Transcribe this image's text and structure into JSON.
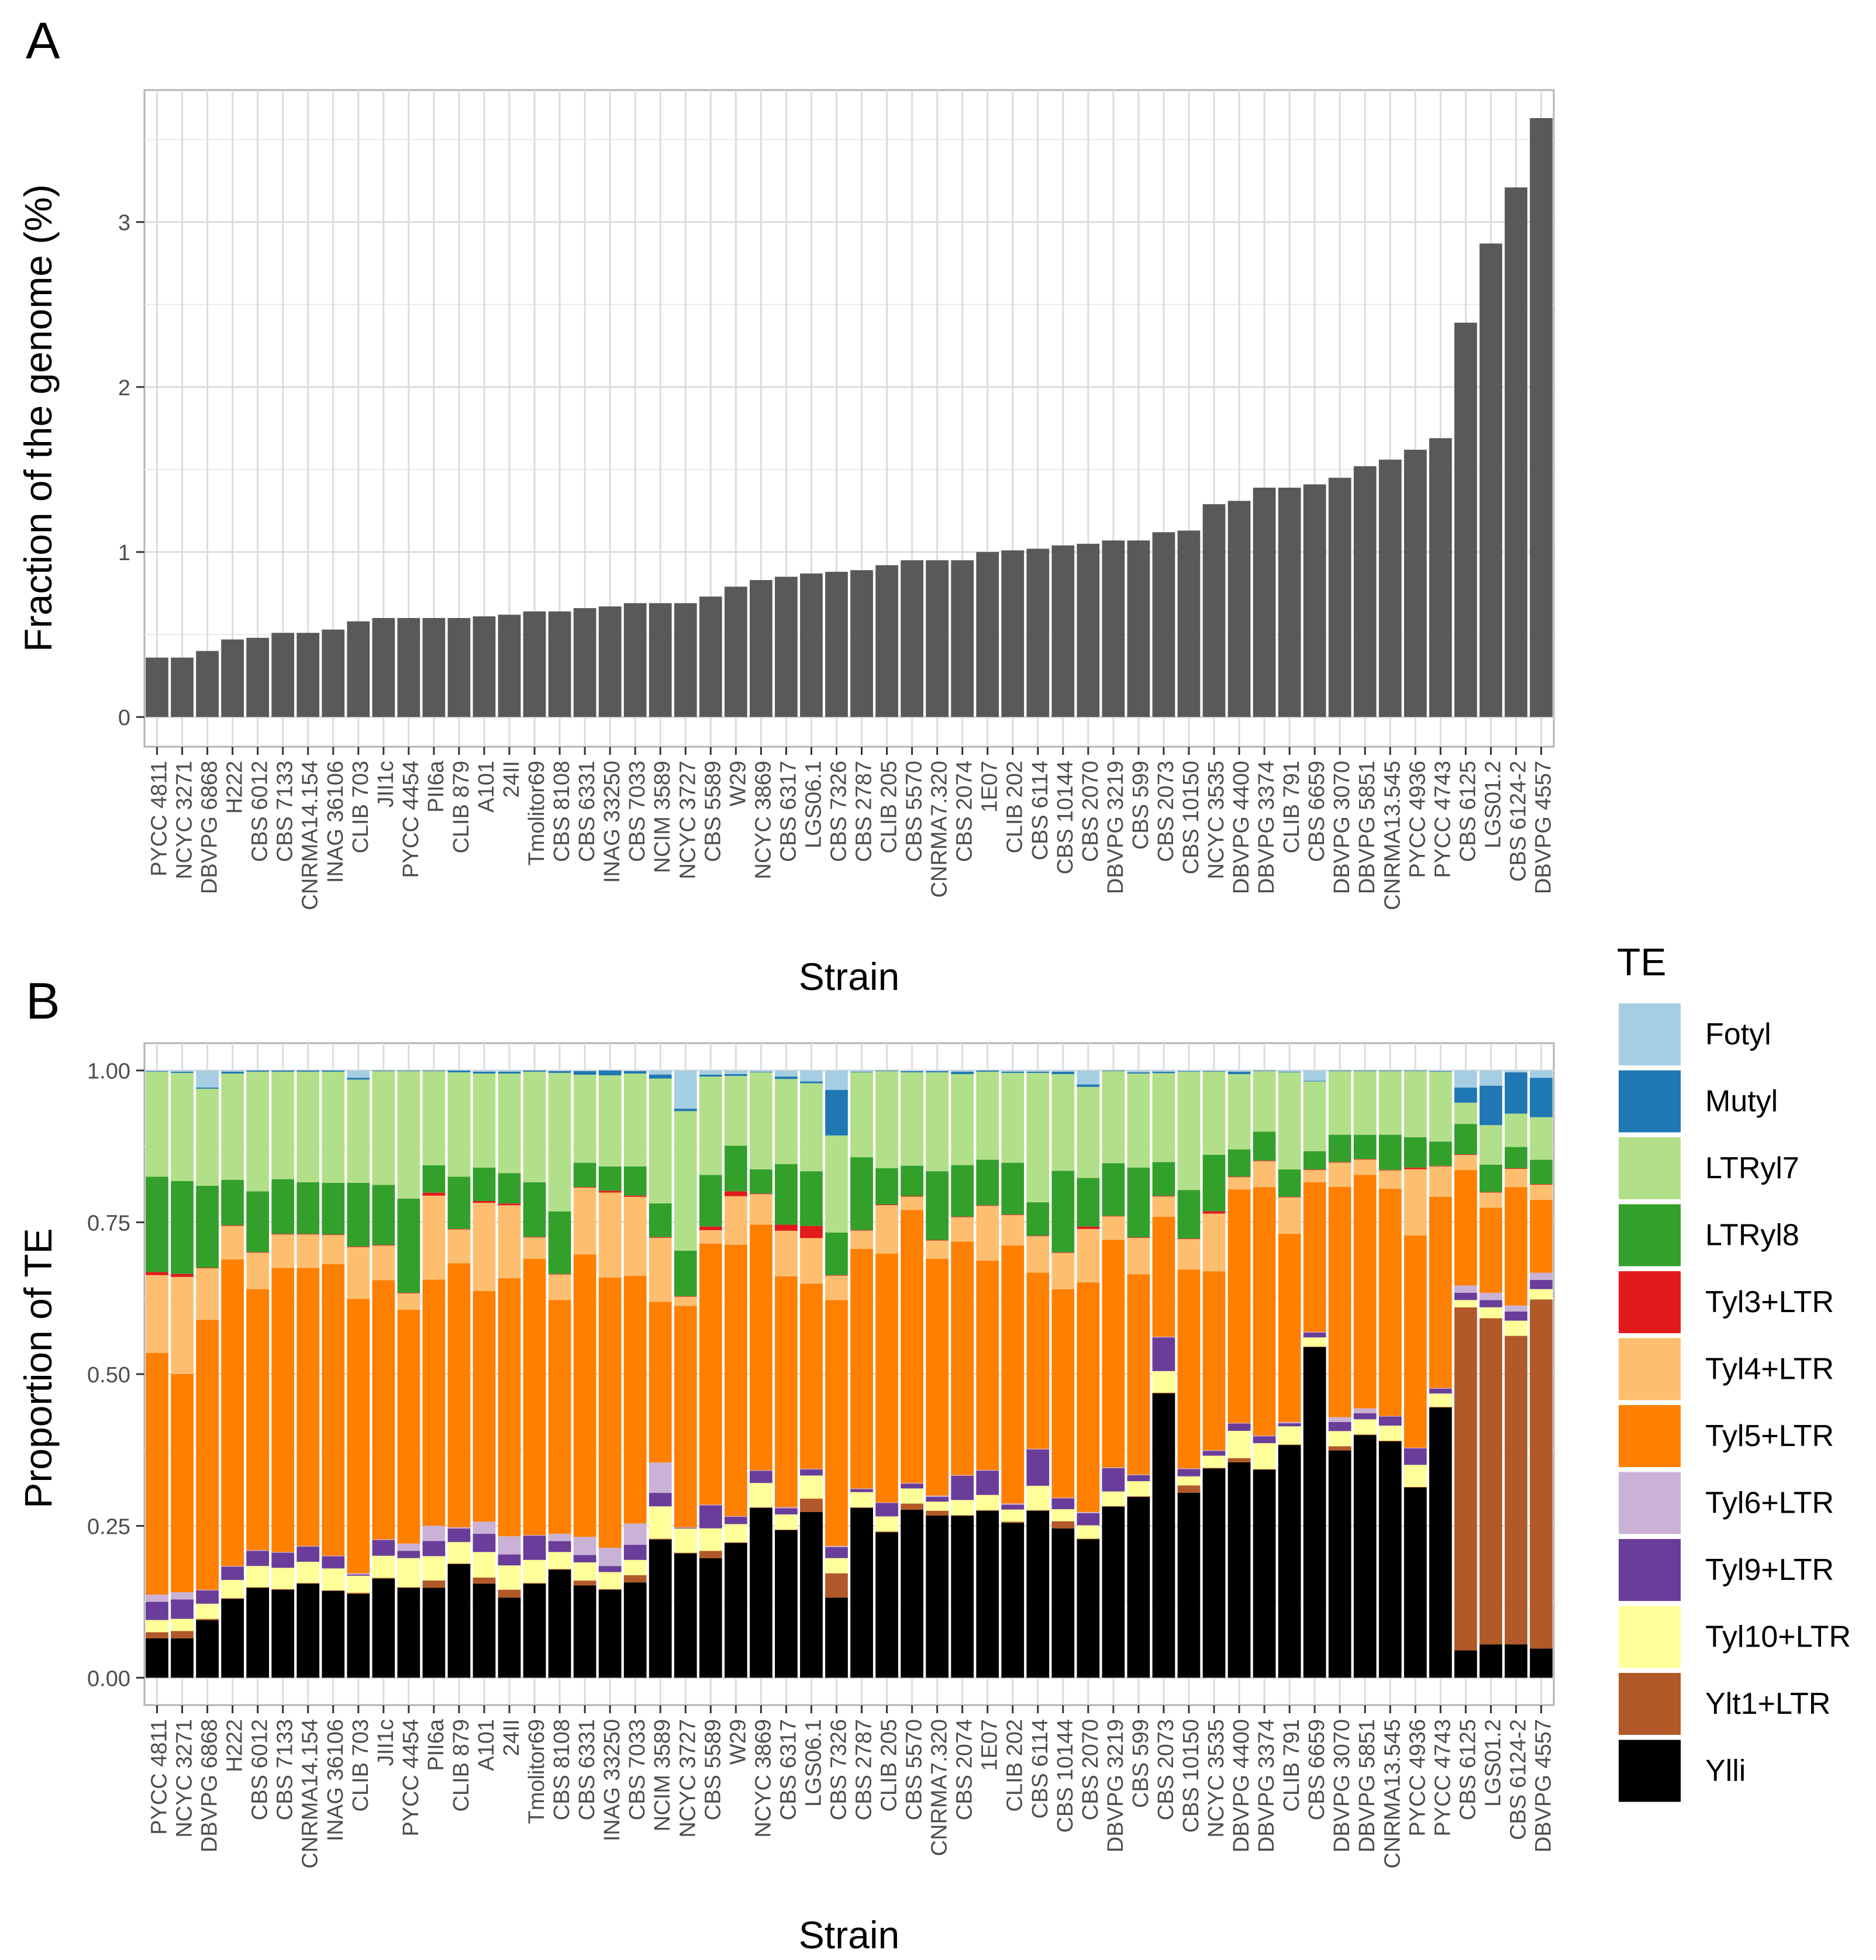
{
  "strains": [
    "PYCC 4811",
    "NCYC 3271",
    "DBVPG 6868",
    "H222",
    "CBS 6012",
    "CBS 7133",
    "CNRMA14.154",
    "INAG 36106",
    "CLIB 703",
    "JII1c",
    "PYCC 4454",
    "PII6a",
    "CLIB 879",
    "A101",
    "24II",
    "Tmolitor69",
    "CBS 8108",
    "CBS 6331",
    "INAG 33250",
    "CBS 7033",
    "NCIM 3589",
    "NCYC 3727",
    "CBS 5589",
    "W29",
    "NCYC 3869",
    "CBS 6317",
    "LGS06.1",
    "CBS 7326",
    "CBS 2787",
    "CLIB 205",
    "CBS 5570",
    "CNRMA7.320",
    "CBS 2074",
    "1E07",
    "CLIB 202",
    "CBS 6114",
    "CBS 10144",
    "CBS 2070",
    "DBVPG 3219",
    "CBS 599",
    "CBS 2073",
    "CBS 10150",
    "NCYC 3535",
    "DBVPG 4400",
    "DBVPG 3374",
    "CLIB 791",
    "CBS 6659",
    "DBVPG 3070",
    "DBVPG 5851",
    "CNRMA13.545",
    "PYCC 4936",
    "PYCC 4743",
    "CBS 6125",
    "LGS01.2",
    "CBS 6124-2",
    "DBVPG 4557"
  ],
  "chart_data": [
    {
      "panel": "A",
      "type": "bar",
      "title": "",
      "xlabel": "Strain",
      "ylabel": "Fraction of the genome (%)",
      "ylim": [
        -0.18,
        3.8
      ],
      "yticks": [
        0,
        1,
        2,
        3
      ],
      "grid": true,
      "values": [
        0.36,
        0.36,
        0.4,
        0.47,
        0.48,
        0.51,
        0.51,
        0.53,
        0.58,
        0.6,
        0.6,
        0.6,
        0.6,
        0.61,
        0.62,
        0.64,
        0.64,
        0.66,
        0.67,
        0.69,
        0.69,
        0.69,
        0.73,
        0.79,
        0.83,
        0.85,
        0.87,
        0.88,
        0.89,
        0.92,
        0.95,
        0.95,
        0.95,
        1.0,
        1.01,
        1.02,
        1.04,
        1.05,
        1.07,
        1.07,
        1.12,
        1.13,
        1.29,
        1.31,
        1.39,
        1.39,
        1.41,
        1.45,
        1.52,
        1.56,
        1.62,
        1.69,
        2.39,
        2.87,
        3.21,
        3.63
      ]
    },
    {
      "panel": "B",
      "type": "bar",
      "stacked": true,
      "title": "",
      "xlabel": "Strain",
      "ylabel": "Proportion of TE",
      "ylim": [
        -0.045,
        1.045
      ],
      "yticks": [
        "0.00",
        "0.25",
        "0.50",
        "0.75",
        "1.00"
      ],
      "grid": true,
      "legend_title": "TE",
      "legend_position": "right",
      "series": [
        {
          "name": "Ylli",
          "color": "#000000",
          "values": [
            0.065,
            0.065,
            0.095,
            0.13,
            0.148,
            0.145,
            0.155,
            0.143,
            0.138,
            0.157,
            0.148,
            0.148,
            0.185,
            0.155,
            0.132,
            0.155,
            0.178,
            0.152,
            0.145,
            0.157,
            0.205,
            0.205,
            0.197,
            0.222,
            0.28,
            0.243,
            0.273,
            0.132,
            0.28,
            0.24,
            0.277,
            0.267,
            0.267,
            0.275,
            0.255,
            0.275,
            0.247,
            0.228,
            0.293,
            0.298,
            0.422,
            0.305,
            0.345,
            0.355,
            0.36,
            0.383,
            0.545,
            0.375,
            0.4,
            0.39,
            0.345,
            0.445,
            0.045,
            0.055,
            0.055,
            0.048
          ]
        },
        {
          "name": "Ylt1+LTR",
          "color": "#b15928",
          "values": [
            0.01,
            0.012,
            0.002,
            0.001,
            0.001,
            0.001,
            0.001,
            0.001,
            0.002,
            0.001,
            0.001,
            0.012,
            0.001,
            0.01,
            0.013,
            0.001,
            0.001,
            0.008,
            0.001,
            0.012,
            0.001,
            0.001,
            0.012,
            0.001,
            0.001,
            0.001,
            0.022,
            0.04,
            0.001,
            0.001,
            0.01,
            0.008,
            0.001,
            0.001,
            0.002,
            0.001,
            0.012,
            0.001,
            0.001,
            0.001,
            0.001,
            0.012,
            0.001,
            0.007,
            0.001,
            0.001,
            0.001,
            0.007,
            0.001,
            0.001,
            0.001,
            0.001,
            0.565,
            0.537,
            0.508,
            0.575
          ]
        },
        {
          "name": "Tyl10+LTR",
          "color": "#ffff99",
          "values": [
            0.02,
            0.02,
            0.025,
            0.03,
            0.035,
            0.035,
            0.035,
            0.036,
            0.028,
            0.035,
            0.048,
            0.04,
            0.035,
            0.042,
            0.04,
            0.038,
            0.028,
            0.03,
            0.028,
            0.025,
            0.048,
            0.04,
            0.037,
            0.03,
            0.04,
            0.025,
            0.038,
            0.025,
            0.025,
            0.025,
            0.025,
            0.015,
            0.025,
            0.025,
            0.02,
            0.04,
            0.02,
            0.022,
            0.025,
            0.025,
            0.032,
            0.015,
            0.02,
            0.045,
            0.045,
            0.03,
            0.015,
            0.025,
            0.025,
            0.025,
            0.04,
            0.022,
            0.012,
            0.018,
            0.025,
            0.017
          ]
        },
        {
          "name": "Tyl9+LTR",
          "color": "#6a3d9a",
          "values": [
            0.03,
            0.032,
            0.022,
            0.022,
            0.025,
            0.025,
            0.025,
            0.02,
            0.002,
            0.025,
            0.012,
            0.025,
            0.022,
            0.03,
            0.018,
            0.04,
            0.018,
            0.012,
            0.01,
            0.025,
            0.02,
            0.001,
            0.038,
            0.012,
            0.02,
            0.01,
            0.01,
            0.018,
            0.005,
            0.022,
            0.008,
            0.008,
            0.04,
            0.04,
            0.008,
            0.06,
            0.018,
            0.02,
            0.04,
            0.01,
            0.05,
            0.012,
            0.008,
            0.012,
            0.012,
            0.005,
            0.008,
            0.015,
            0.01,
            0.015,
            0.03,
            0.008,
            0.012,
            0.012,
            0.015,
            0.015
          ]
        },
        {
          "name": "Tyl6+LTR",
          "color": "#cab2d6",
          "values": [
            0.012,
            0.012,
            0.001,
            0.001,
            0.001,
            0.001,
            0.001,
            0.001,
            0.002,
            0.001,
            0.012,
            0.025,
            0.002,
            0.02,
            0.03,
            0.001,
            0.012,
            0.03,
            0.03,
            0.035,
            0.045,
            0.001,
            0.001,
            0.001,
            0.001,
            0.002,
            0.001,
            0.002,
            0.001,
            0.001,
            0.001,
            0.002,
            0.001,
            0.001,
            0.002,
            0.001,
            0.001,
            0.002,
            0.001,
            0.001,
            0.001,
            0.001,
            0.001,
            0.001,
            0.001,
            0.002,
            0.001,
            0.008,
            0.008,
            0.001,
            0.001,
            0.001,
            0.012,
            0.012,
            0.01,
            0.012
          ]
        },
        {
          "name": "Tyl5+LTR",
          "color": "#ff7f00",
          "values": [
            0.398,
            0.359,
            0.445,
            0.505,
            0.43,
            0.468,
            0.458,
            0.48,
            0.452,
            0.41,
            0.385,
            0.405,
            0.43,
            0.38,
            0.425,
            0.455,
            0.385,
            0.465,
            0.445,
            0.408,
            0.238,
            0.365,
            0.43,
            0.447,
            0.405,
            0.38,
            0.305,
            0.405,
            0.395,
            0.41,
            0.45,
            0.39,
            0.385,
            0.345,
            0.425,
            0.29,
            0.345,
            0.378,
            0.39,
            0.33,
            0.178,
            0.328,
            0.295,
            0.385,
            0.43,
            0.31,
            0.247,
            0.38,
            0.385,
            0.375,
            0.385,
            0.315,
            0.19,
            0.14,
            0.195,
            0.12
          ]
        },
        {
          "name": "Tyl4+LTR",
          "color": "#fdbf6f",
          "values": [
            0.128,
            0.16,
            0.085,
            0.055,
            0.06,
            0.055,
            0.055,
            0.048,
            0.085,
            0.055,
            0.027,
            0.138,
            0.055,
            0.145,
            0.12,
            0.035,
            0.042,
            0.11,
            0.14,
            0.13,
            0.095,
            0.015,
            0.022,
            0.08,
            0.05,
            0.075,
            0.075,
            0.04,
            0.03,
            0.08,
            0.022,
            0.03,
            0.04,
            0.09,
            0.05,
            0.06,
            0.06,
            0.088,
            0.04,
            0.06,
            0.03,
            0.05,
            0.095,
            0.02,
            0.045,
            0.06,
            0.02,
            0.04,
            0.025,
            0.03,
            0.12,
            0.05,
            0.025,
            0.025,
            0.03,
            0.025
          ]
        },
        {
          "name": "Tyl3+LTR",
          "color": "#e31a1c",
          "values": [
            0.005,
            0.005,
            0.001,
            0.001,
            0.001,
            0.001,
            0.001,
            0.001,
            0.001,
            0.001,
            0.001,
            0.005,
            0.001,
            0.003,
            0.003,
            0.001,
            0.001,
            0.001,
            0.003,
            0.002,
            0.001,
            0.001,
            0.006,
            0.008,
            0.001,
            0.01,
            0.02,
            0.001,
            0.001,
            0.001,
            0.001,
            0.001,
            0.001,
            0.001,
            0.001,
            0.001,
            0.001,
            0.004,
            0.001,
            0.001,
            0.001,
            0.001,
            0.004,
            0.001,
            0.001,
            0.001,
            0.001,
            0.001,
            0.001,
            0.001,
            0.003,
            0.001,
            0.001,
            0.001,
            0.001,
            0.001
          ]
        },
        {
          "name": "LTRyl8",
          "color": "#33a02c",
          "values": [
            0.157,
            0.153,
            0.135,
            0.075,
            0.1,
            0.09,
            0.085,
            0.085,
            0.105,
            0.095,
            0.155,
            0.045,
            0.085,
            0.055,
            0.05,
            0.09,
            0.103,
            0.04,
            0.04,
            0.048,
            0.05,
            0.075,
            0.085,
            0.075,
            0.04,
            0.1,
            0.09,
            0.07,
            0.12,
            0.06,
            0.05,
            0.113,
            0.085,
            0.075,
            0.085,
            0.055,
            0.135,
            0.08,
            0.09,
            0.115,
            0.05,
            0.08,
            0.093,
            0.045,
            0.05,
            0.045,
            0.03,
            0.045,
            0.04,
            0.058,
            0.055,
            0.04,
            0.05,
            0.045,
            0.035,
            0.04
          ]
        },
        {
          "name": "LTRyl7",
          "color": "#b2df8a",
          "values": [
            0.173,
            0.178,
            0.16,
            0.175,
            0.197,
            0.177,
            0.182,
            0.183,
            0.17,
            0.18,
            0.21,
            0.155,
            0.17,
            0.155,
            0.164,
            0.182,
            0.228,
            0.145,
            0.15,
            0.153,
            0.185,
            0.23,
            0.162,
            0.115,
            0.16,
            0.14,
            0.145,
            0.16,
            0.14,
            0.16,
            0.154,
            0.163,
            0.15,
            0.145,
            0.148,
            0.213,
            0.16,
            0.15,
            0.158,
            0.155,
            0.132,
            0.195,
            0.137,
            0.124,
            0.105,
            0.16,
            0.115,
            0.105,
            0.105,
            0.105,
            0.12,
            0.115,
            0.035,
            0.065,
            0.055,
            0.07
          ]
        },
        {
          "name": "Mutyl",
          "color": "#1f78b4",
          "values": [
            0.001,
            0.002,
            0.002,
            0.003,
            0.002,
            0.002,
            0.002,
            0.002,
            0.003,
            0.001,
            0.001,
            0.001,
            0.003,
            0.003,
            0.003,
            0.002,
            0.003,
            0.006,
            0.008,
            0.004,
            0.006,
            0.004,
            0.003,
            0.003,
            0.001,
            0.004,
            0.003,
            0.075,
            0.001,
            0.001,
            0.002,
            0.002,
            0.004,
            0.002,
            0.002,
            0.002,
            0.004,
            0.004,
            0.001,
            0.002,
            0.002,
            0.001,
            0.001,
            0.004,
            0.001,
            0.001,
            0.001,
            0.001,
            0.001,
            0.001,
            0.001,
            0.001,
            0.025,
            0.065,
            0.068,
            0.065
          ]
        },
        {
          "name": "Fotyl",
          "color": "#a6cee3",
          "values": [
            0.001,
            0.002,
            0.028,
            0.002,
            0.0,
            0.0,
            0.0,
            0.0,
            0.012,
            0.0,
            0.0,
            0.0,
            0.0,
            0.002,
            0.002,
            0.0,
            0.001,
            0.001,
            0.0,
            0.001,
            0.006,
            0.063,
            0.007,
            0.006,
            0.002,
            0.01,
            0.018,
            0.032,
            0.002,
            0.0,
            0.001,
            0.001,
            0.002,
            0.0,
            0.002,
            0.002,
            0.002,
            0.023,
            0.0,
            0.003,
            0.002,
            0.001,
            0.001,
            0.002,
            0.0,
            0.002,
            0.017,
            0.0,
            0.0,
            0.0,
            0.0,
            0.001,
            0.028,
            0.025,
            0.003,
            0.012
          ]
        }
      ]
    }
  ],
  "labels": {
    "panel_a": "A",
    "panel_b": "B",
    "legend_title": "TE",
    "legend_items": [
      "Fotyl",
      "Mutyl",
      "LTRyl7",
      "LTRyl8",
      "Tyl3+LTR",
      "Tyl4+LTR",
      "Tyl5+LTR",
      "Tyl6+LTR",
      "Tyl9+LTR",
      "Tyl10+LTR",
      "Ylt1+LTR",
      "Ylli"
    ]
  }
}
